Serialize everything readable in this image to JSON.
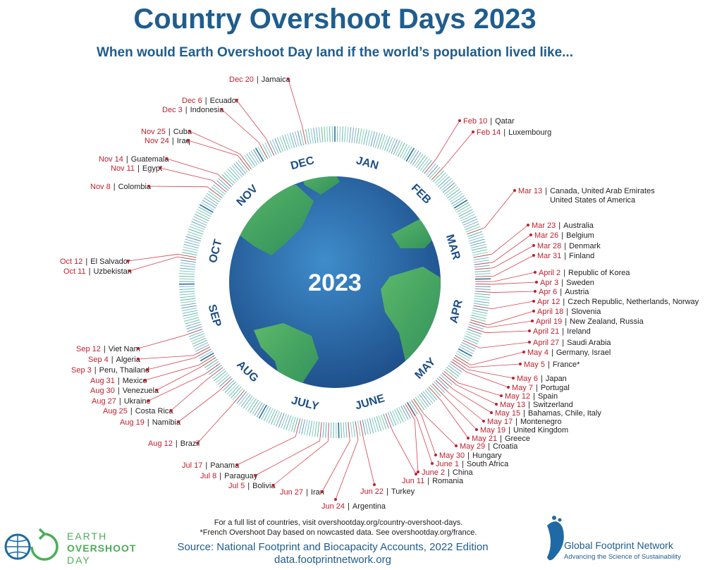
{
  "header": {
    "title": "Country Overshoot Days 2023",
    "subtitle": "When would Earth Overshoot Day land if the world’s population lived like..."
  },
  "center_label": "2023",
  "months": [
    "JAN",
    "FEB",
    "MAR",
    "APR",
    "MAY",
    "JUNE",
    "JULY",
    "AUG",
    "SEP",
    "OCT",
    "NOV",
    "DEC"
  ],
  "separator": "|",
  "entries": [
    {
      "date": "Dec 20",
      "countries": [
        "Jamaica"
      ]
    },
    {
      "date": "Dec 6",
      "countries": [
        "Ecuador"
      ]
    },
    {
      "date": "Dec 3",
      "countries": [
        "Indonesia"
      ]
    },
    {
      "date": "Nov 25",
      "countries": [
        "Cuba"
      ]
    },
    {
      "date": "Nov 24",
      "countries": [
        "Iraq"
      ]
    },
    {
      "date": "Nov 14",
      "countries": [
        "Guatemala"
      ]
    },
    {
      "date": "Nov 11",
      "countries": [
        "Egypt"
      ]
    },
    {
      "date": "Nov 8",
      "countries": [
        "Colombia"
      ]
    },
    {
      "date": "Oct 12",
      "countries": [
        "El Salvador"
      ]
    },
    {
      "date": "Oct 11",
      "countries": [
        "Uzbekistan"
      ]
    },
    {
      "date": "Sep 12",
      "countries": [
        "Viet Nam"
      ]
    },
    {
      "date": "Sep 4",
      "countries": [
        "Algeria"
      ]
    },
    {
      "date": "Sep 3",
      "countries": [
        "Peru, Thailand"
      ]
    },
    {
      "date": "Aug 31",
      "countries": [
        "Mexico"
      ]
    },
    {
      "date": "Aug 30",
      "countries": [
        "Venezuela"
      ]
    },
    {
      "date": "Aug 27",
      "countries": [
        "Ukraine"
      ]
    },
    {
      "date": "Aug 25",
      "countries": [
        "Costa Rica"
      ]
    },
    {
      "date": "Aug 19",
      "countries": [
        "Namibia"
      ]
    },
    {
      "date": "Aug 12",
      "countries": [
        "Brazil"
      ]
    },
    {
      "date": "Jul 17",
      "countries": [
        "Panama"
      ]
    },
    {
      "date": "Jul 8",
      "countries": [
        "Paraguay"
      ]
    },
    {
      "date": "Jul 5",
      "countries": [
        "Bolivia"
      ]
    },
    {
      "date": "Jun 27",
      "countries": [
        "Iran"
      ]
    },
    {
      "date": "Jun 24",
      "countries": [
        "Argentina"
      ]
    },
    {
      "date": "Jun 22",
      "countries": [
        "Turkey"
      ]
    },
    {
      "date": "Jun 11",
      "countries": [
        "Romania"
      ]
    },
    {
      "date": "June 2",
      "countries": [
        "China"
      ]
    },
    {
      "date": "June 1",
      "countries": [
        "South Africa"
      ]
    },
    {
      "date": "May 30",
      "countries": [
        "Hungary"
      ]
    },
    {
      "date": "May 29",
      "countries": [
        "Croatia"
      ]
    },
    {
      "date": "May 21",
      "countries": [
        "Greece"
      ]
    },
    {
      "date": "May 19",
      "countries": [
        "United Kingdom"
      ]
    },
    {
      "date": "May 17",
      "countries": [
        "Montenegro"
      ]
    },
    {
      "date": "May 15",
      "countries": [
        "Bahamas, Chile, Italy"
      ]
    },
    {
      "date": "May 13",
      "countries": [
        "Switzerland"
      ]
    },
    {
      "date": "May 12",
      "countries": [
        "Spain"
      ]
    },
    {
      "date": "May 7",
      "countries": [
        "Portugal"
      ]
    },
    {
      "date": "May 6",
      "countries": [
        "Japan"
      ]
    },
    {
      "date": "May 5",
      "countries": [
        "France*"
      ]
    },
    {
      "date": "May 4",
      "countries": [
        "Germany, Israel"
      ]
    },
    {
      "date": "April 27",
      "countries": [
        "Saudi Arabia"
      ]
    },
    {
      "date": "April 21",
      "countries": [
        "Ireland"
      ]
    },
    {
      "date": "April 19",
      "countries": [
        "New Zealand, Russia"
      ]
    },
    {
      "date": "April 18",
      "countries": [
        "Slovenia"
      ]
    },
    {
      "date": "Apr 12",
      "countries": [
        "Czech Republic, Netherlands, Norway"
      ]
    },
    {
      "date": "Apr 6",
      "countries": [
        "Austria"
      ]
    },
    {
      "date": "Apr 3",
      "countries": [
        "Sweden"
      ]
    },
    {
      "date": "April 2",
      "countries": [
        "Republic of Korea"
      ]
    },
    {
      "date": "Mar 31",
      "countries": [
        "Finland"
      ]
    },
    {
      "date": "Mar 28",
      "countries": [
        "Denmark"
      ]
    },
    {
      "date": "Mar 26",
      "countries": [
        "Belgium"
      ]
    },
    {
      "date": "Mar 23",
      "countries": [
        "Australia"
      ]
    },
    {
      "date": "Mar 13",
      "countries": [
        "Canada, United Arab Emirates",
        "United States of America"
      ]
    },
    {
      "date": "Feb 14",
      "countries": [
        "Luxembourg"
      ]
    },
    {
      "date": "Feb 10",
      "countries": [
        "Qatar"
      ]
    }
  ],
  "footer": {
    "notes": [
      "For a full list of countries, visit overshootday.org/country-overshoot-days.",
      "*French Overshoot Day based on nowcasted data. See overshootday.org/france."
    ],
    "source": [
      "Source: National Footprint and Biocapacity Accounts, 2022 Edition",
      "data.footprintnetwork.org"
    ]
  },
  "logos": {
    "left": [
      "EARTH",
      "OVERSHOOT",
      "DAY"
    ],
    "right": {
      "name": "Global Footprint Network",
      "tagline": "Advancing the Science of Sustainability"
    }
  }
}
